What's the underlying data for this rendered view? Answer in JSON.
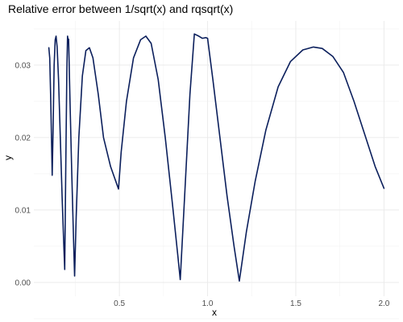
{
  "chart_data": {
    "type": "line",
    "title": "Relative error between 1/sqrt(x) and rqsqrt(x)",
    "xlabel": "x",
    "ylabel": "y",
    "xlim": [
      0.1,
      2.0
    ],
    "ylim": [
      0.0,
      0.034
    ],
    "x_ticks": [
      "0.5",
      "1.0",
      "1.5",
      "2.0"
    ],
    "y_ticks": [
      "0.00",
      "0.01",
      "0.02",
      "0.03"
    ],
    "grid": true,
    "colors": {
      "line": "#0b1f5c",
      "grid_major": "#ebebeb",
      "grid_minor": "#f4f4f4"
    },
    "series": [
      {
        "points": [
          [
            0.1,
            0.0324
          ],
          [
            0.105,
            0.031
          ],
          [
            0.11,
            0.026
          ],
          [
            0.115,
            0.02
          ],
          [
            0.119,
            0.0148
          ],
          [
            0.124,
            0.021
          ],
          [
            0.13,
            0.03
          ],
          [
            0.136,
            0.0335
          ],
          [
            0.141,
            0.034
          ],
          [
            0.147,
            0.0325
          ],
          [
            0.155,
            0.028
          ],
          [
            0.165,
            0.02
          ],
          [
            0.175,
            0.012
          ],
          [
            0.185,
            0.005
          ],
          [
            0.19,
            0.0018
          ],
          [
            0.196,
            0.016
          ],
          [
            0.202,
            0.029
          ],
          [
            0.206,
            0.034
          ],
          [
            0.208,
            0.0336
          ],
          [
            0.212,
            0.0336
          ],
          [
            0.214,
            0.0315
          ],
          [
            0.22,
            0.025
          ],
          [
            0.23,
            0.015
          ],
          [
            0.24,
            0.006
          ],
          [
            0.246,
            0.0009
          ],
          [
            0.255,
            0.009
          ],
          [
            0.27,
            0.02
          ],
          [
            0.29,
            0.0285
          ],
          [
            0.31,
            0.032
          ],
          [
            0.33,
            0.0324
          ],
          [
            0.35,
            0.031
          ],
          [
            0.38,
            0.026
          ],
          [
            0.41,
            0.02
          ],
          [
            0.45,
            0.016
          ],
          [
            0.495,
            0.0129
          ],
          [
            0.51,
            0.018
          ],
          [
            0.54,
            0.025
          ],
          [
            0.58,
            0.031
          ],
          [
            0.62,
            0.0335
          ],
          [
            0.65,
            0.034
          ],
          [
            0.68,
            0.033
          ],
          [
            0.72,
            0.028
          ],
          [
            0.76,
            0.02
          ],
          [
            0.8,
            0.011
          ],
          [
            0.83,
            0.004
          ],
          [
            0.845,
            0.0004
          ],
          [
            0.87,
            0.012
          ],
          [
            0.9,
            0.026
          ],
          [
            0.925,
            0.0343
          ],
          [
            0.95,
            0.034
          ],
          [
            0.97,
            0.0337
          ],
          [
            0.99,
            0.0338
          ],
          [
            1.0,
            0.0337
          ],
          [
            1.03,
            0.028
          ],
          [
            1.07,
            0.02
          ],
          [
            1.11,
            0.012
          ],
          [
            1.15,
            0.005
          ],
          [
            1.18,
            0.0002
          ],
          [
            1.22,
            0.007
          ],
          [
            1.27,
            0.014
          ],
          [
            1.33,
            0.021
          ],
          [
            1.4,
            0.027
          ],
          [
            1.47,
            0.0305
          ],
          [
            1.54,
            0.0321
          ],
          [
            1.6,
            0.0325
          ],
          [
            1.65,
            0.0323
          ],
          [
            1.71,
            0.0312
          ],
          [
            1.77,
            0.029
          ],
          [
            1.83,
            0.025
          ],
          [
            1.89,
            0.0205
          ],
          [
            1.95,
            0.016
          ],
          [
            2.0,
            0.013
          ]
        ]
      }
    ]
  }
}
